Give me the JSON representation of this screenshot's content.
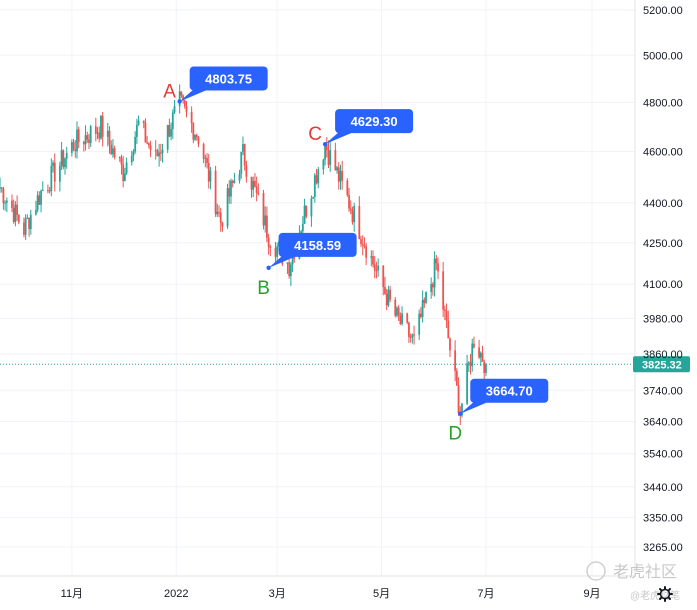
{
  "chart_data": {
    "type": "candlestick",
    "yscale": "log",
    "ylim": [
      3200,
      5300
    ],
    "y_ticks": [
      "5200.00",
      "5000.00",
      "4800.00",
      "4600.00",
      "4400.00",
      "4250.00",
      "4100.00",
      "3980.00",
      "3860.00",
      "3740.00",
      "3640.00",
      "3540.00",
      "3440.00",
      "3350.00",
      "3265.00"
    ],
    "x_ticks": [
      "11月",
      "2022",
      "3月",
      "5月",
      "7月",
      "9月"
    ],
    "x_tick_dates": [
      "2021-11-01",
      "2022-01-01",
      "2022-03-01",
      "2022-05-01",
      "2022-07-01",
      "2022-09-01"
    ],
    "grid": true,
    "current_price": "3825.32",
    "colors": {
      "up": "#26a69a",
      "down": "#ef5350",
      "callout": "#2962ff",
      "label_peak": "#e53935",
      "label_trough": "#2ca02c",
      "price_line": "#26a69a"
    },
    "annotations": [
      {
        "label": "A",
        "value": "4803.75",
        "date": "2022-01-03",
        "price": 4803.75,
        "kind": "peak"
      },
      {
        "label": "B",
        "value": "4158.59",
        "date": "2022-02-24",
        "price": 4158.59,
        "kind": "trough"
      },
      {
        "label": "C",
        "value": "4629.30",
        "date": "2022-03-29",
        "price": 4629.3,
        "kind": "peak"
      },
      {
        "label": "D",
        "value": "3664.70",
        "date": "2022-06-16",
        "price": 3664.7,
        "kind": "trough"
      }
    ],
    "key_closes": [
      {
        "date": "2021-09-20",
        "close": 4460
      },
      {
        "date": "2021-10-04",
        "close": 4300
      },
      {
        "date": "2021-10-14",
        "close": 4440
      },
      {
        "date": "2021-11-02",
        "close": 4630
      },
      {
        "date": "2021-11-18",
        "close": 4700
      },
      {
        "date": "2021-12-01",
        "close": 4520
      },
      {
        "date": "2021-12-10",
        "close": 4710
      },
      {
        "date": "2021-12-20",
        "close": 4570
      },
      {
        "date": "2022-01-03",
        "close": 4796
      },
      {
        "date": "2022-01-14",
        "close": 4660
      },
      {
        "date": "2022-01-27",
        "close": 4330
      },
      {
        "date": "2022-02-09",
        "close": 4590
      },
      {
        "date": "2022-02-24",
        "close": 4280
      },
      {
        "date": "2022-03-08",
        "close": 4170
      },
      {
        "date": "2022-03-29",
        "close": 4630
      },
      {
        "date": "2022-04-12",
        "close": 4400
      },
      {
        "date": "2022-04-29",
        "close": 4130
      },
      {
        "date": "2022-05-09",
        "close": 3990
      },
      {
        "date": "2022-05-20",
        "close": 3900
      },
      {
        "date": "2022-06-02",
        "close": 4170
      },
      {
        "date": "2022-06-16",
        "close": 3670
      },
      {
        "date": "2022-06-24",
        "close": 3910
      },
      {
        "date": "2022-07-01",
        "close": 3825
      }
    ]
  },
  "watermark": {
    "main": "老虎社区",
    "sub": "@老虎财笔"
  },
  "icons": {
    "settings": "gear-icon"
  }
}
